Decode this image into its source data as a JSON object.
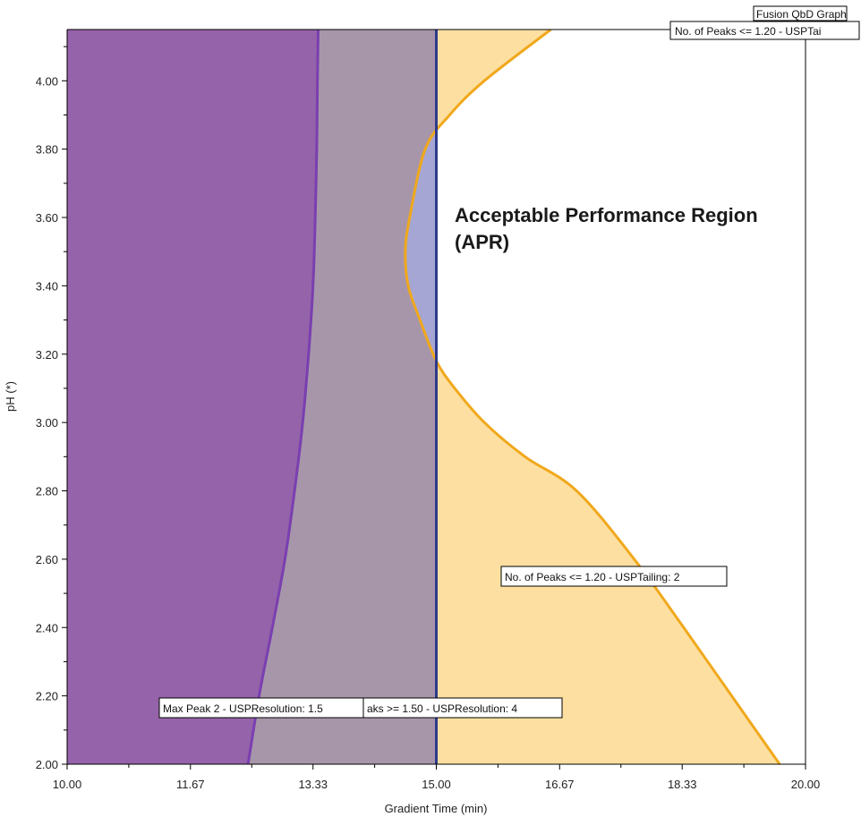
{
  "chart_data": {
    "type": "area",
    "xlabel": "Gradient Time (min)",
    "ylabel": "pH (*)",
    "xlim": [
      10.0,
      20.0
    ],
    "ylim": [
      2.0,
      4.15
    ],
    "x_ticks": [
      "10.00",
      "11.67",
      "13.33",
      "15.00",
      "16.67",
      "18.33",
      "20.00"
    ],
    "x_tick_values": [
      10.0,
      11.67,
      13.33,
      15.0,
      16.67,
      18.33,
      20.0
    ],
    "y_ticks": [
      "2.00",
      "2.20",
      "2.40",
      "2.60",
      "2.80",
      "3.00",
      "3.20",
      "3.40",
      "3.60",
      "3.80",
      "4.00"
    ],
    "y_tick_values": [
      2.0,
      2.2,
      2.4,
      2.6,
      2.8,
      3.0,
      3.2,
      3.4,
      3.6,
      3.8,
      4.0
    ],
    "grid": false,
    "header_label": "Fusion QbD Graph",
    "annotation": "Acceptable Performance Region\n(APR)",
    "colors": {
      "purple_fill": "#9563a9",
      "purple_line": "#7a3fb0",
      "mauve_fill": "#a796aa",
      "blue_fill": "#a5a6d4",
      "blue_line": "#2e3a8c",
      "yellow_fill": "#fde0a1",
      "yellow_line": "#f0a81c"
    },
    "series": [
      {
        "label": "Max Peak 2 - USPResolution: 1.5",
        "boundary": {
          "x": [
            12.45,
            12.6,
            12.78,
            12.95,
            13.08,
            13.19,
            13.27,
            13.33,
            13.36,
            13.38,
            13.39,
            13.4
          ],
          "y": [
            2.0,
            2.2,
            2.4,
            2.6,
            2.8,
            3.0,
            3.2,
            3.4,
            3.6,
            3.8,
            4.0,
            4.15
          ]
        }
      },
      {
        "label": "aks >= 1.50 - USPResolution: 4",
        "boundary": {
          "x": [
            15.0,
            15.0
          ],
          "y": [
            2.0,
            4.15
          ]
        }
      },
      {
        "label": "No. of Peaks <= 1.20 - USPTailing: 2",
        "boundary": {
          "x": [
            19.65,
            19.0,
            18.35,
            17.68,
            16.9,
            16.2,
            15.65,
            15.25,
            15.0,
            14.78,
            14.62,
            14.58,
            14.64,
            14.85,
            15.18,
            15.65,
            16.55
          ],
          "y": [
            2.0,
            2.2,
            2.4,
            2.6,
            2.8,
            2.9,
            3.0,
            3.1,
            3.18,
            3.3,
            3.4,
            3.5,
            3.6,
            3.8,
            3.9,
            4.0,
            4.15
          ]
        }
      }
    ],
    "top_label": "No. of Peaks <= 1.20 - USPTai"
  }
}
